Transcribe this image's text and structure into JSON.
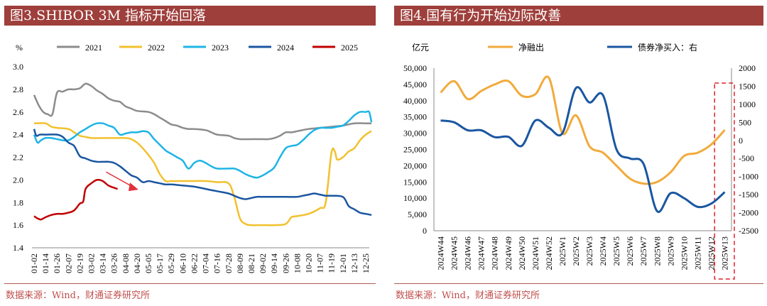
{
  "panel_left": {
    "title": "图3.SHIBOR 3M  指标开始回落",
    "source": "数据来源：Wind，财通证券研究所"
  },
  "panel_right": {
    "title": "图4.国有行为开始边际改善",
    "source": "数据来源：Wind，财通证券研究所"
  },
  "chart_data": [
    {
      "type": "line",
      "ylabel": "%",
      "ylim": [
        1.4,
        3.0
      ],
      "yticks": [
        "1.4",
        "1.6",
        "1.8",
        "2.0",
        "2.2",
        "2.4",
        "2.6",
        "2.8",
        "3.0"
      ],
      "x_ticks": [
        "01-02",
        "01-14",
        "01-26",
        "02-07",
        "02-19",
        "03-02",
        "03-14",
        "03-26",
        "04-08",
        "04-20",
        "05-05",
        "05-17",
        "05-29",
        "06-10",
        "06-22",
        "07-04",
        "07-16",
        "07-28",
        "08-09",
        "08-21",
        "09-02",
        "09-14",
        "09-26",
        "10-08",
        "10-20",
        "11-07",
        "11-19",
        "12-01",
        "12-13",
        "12-25"
      ],
      "legend_position": "top",
      "series": [
        {
          "name": "2021",
          "color": "#8c8c8c",
          "points": [
            [
              0,
              2.75
            ],
            [
              0.4,
              2.66
            ],
            [
              0.8,
              2.6
            ],
            [
              1.2,
              2.58
            ],
            [
              1.6,
              2.58
            ],
            [
              2.0,
              2.77
            ],
            [
              2.5,
              2.78
            ],
            [
              3.0,
              2.8
            ],
            [
              3.5,
              2.8
            ],
            [
              4.0,
              2.81
            ],
            [
              4.5,
              2.85
            ],
            [
              5.0,
              2.83
            ],
            [
              5.5,
              2.79
            ],
            [
              6.0,
              2.76
            ],
            [
              6.5,
              2.72
            ],
            [
              7.0,
              2.7
            ],
            [
              7.5,
              2.69
            ],
            [
              8.0,
              2.65
            ],
            [
              8.5,
              2.63
            ],
            [
              9.0,
              2.61
            ],
            [
              10.0,
              2.6
            ],
            [
              10.5,
              2.58
            ],
            [
              11.0,
              2.55
            ],
            [
              11.5,
              2.52
            ],
            [
              12.0,
              2.49
            ],
            [
              12.5,
              2.48
            ],
            [
              13.0,
              2.46
            ],
            [
              13.5,
              2.45
            ],
            [
              14.0,
              2.45
            ],
            [
              15.0,
              2.44
            ],
            [
              15.5,
              2.42
            ],
            [
              16.0,
              2.4
            ],
            [
              17.0,
              2.39
            ],
            [
              17.5,
              2.37
            ],
            [
              18.0,
              2.36
            ],
            [
              19.0,
              2.36
            ],
            [
              20.0,
              2.36
            ],
            [
              20.5,
              2.36
            ],
            [
              21.0,
              2.37
            ],
            [
              21.5,
              2.39
            ],
            [
              22.0,
              2.42
            ],
            [
              22.5,
              2.42
            ],
            [
              23.0,
              2.43
            ],
            [
              24.0,
              2.45
            ],
            [
              25.0,
              2.46
            ],
            [
              26.0,
              2.47
            ],
            [
              27.0,
              2.48
            ],
            [
              28.0,
              2.5
            ],
            [
              29.0,
              2.5
            ],
            [
              29.5,
              2.5
            ]
          ]
        },
        {
          "name": "2022",
          "color": "#f2c12e",
          "points": [
            [
              0,
              2.5
            ],
            [
              1.0,
              2.5
            ],
            [
              1.5,
              2.47
            ],
            [
              2.0,
              2.46
            ],
            [
              3.0,
              2.45
            ],
            [
              3.5,
              2.42
            ],
            [
              4.0,
              2.39
            ],
            [
              4.5,
              2.38
            ],
            [
              5.0,
              2.37
            ],
            [
              6.0,
              2.37
            ],
            [
              7.0,
              2.37
            ],
            [
              8.0,
              2.37
            ],
            [
              8.5,
              2.36
            ],
            [
              9.0,
              2.33
            ],
            [
              9.5,
              2.28
            ],
            [
              10.0,
              2.22
            ],
            [
              10.5,
              2.15
            ],
            [
              11.0,
              2.05
            ],
            [
              11.5,
              1.99
            ],
            [
              12.0,
              1.99
            ],
            [
              13.0,
              1.99
            ],
            [
              14.0,
              1.99
            ],
            [
              15.0,
              1.99
            ],
            [
              16.0,
              1.98
            ],
            [
              17.0,
              1.97
            ],
            [
              17.5,
              1.85
            ],
            [
              18.0,
              1.66
            ],
            [
              18.5,
              1.61
            ],
            [
              19.0,
              1.6
            ],
            [
              20.0,
              1.6
            ],
            [
              21.0,
              1.6
            ],
            [
              22.0,
              1.61
            ],
            [
              22.5,
              1.67
            ],
            [
              23.0,
              1.68
            ],
            [
              24.0,
              1.7
            ],
            [
              25.0,
              1.75
            ],
            [
              25.5,
              1.8
            ],
            [
              26.0,
              2.24
            ],
            [
              26.3,
              2.25
            ],
            [
              26.5,
              2.18
            ],
            [
              27.0,
              2.2
            ],
            [
              27.5,
              2.25
            ],
            [
              28.0,
              2.28
            ],
            [
              28.5,
              2.35
            ],
            [
              29.0,
              2.4
            ],
            [
              29.5,
              2.43
            ]
          ]
        },
        {
          "name": "2023",
          "color": "#1eb4e6",
          "points": [
            [
              0,
              2.4
            ],
            [
              0.3,
              2.33
            ],
            [
              0.6,
              2.35
            ],
            [
              1.0,
              2.37
            ],
            [
              1.5,
              2.37
            ],
            [
              2.0,
              2.36
            ],
            [
              2.5,
              2.35
            ],
            [
              3.0,
              2.35
            ],
            [
              3.5,
              2.38
            ],
            [
              4.0,
              2.42
            ],
            [
              4.5,
              2.45
            ],
            [
              5.0,
              2.48
            ],
            [
              5.5,
              2.5
            ],
            [
              6.0,
              2.5
            ],
            [
              6.5,
              2.48
            ],
            [
              7.0,
              2.46
            ],
            [
              7.5,
              2.4
            ],
            [
              8.0,
              2.41
            ],
            [
              8.5,
              2.42
            ],
            [
              9.0,
              2.42
            ],
            [
              9.5,
              2.43
            ],
            [
              10.0,
              2.42
            ],
            [
              10.5,
              2.36
            ],
            [
              11.0,
              2.31
            ],
            [
              11.5,
              2.26
            ],
            [
              12.0,
              2.23
            ],
            [
              12.5,
              2.2
            ],
            [
              13.0,
              2.17
            ],
            [
              13.5,
              2.1
            ],
            [
              14.0,
              2.15
            ],
            [
              14.5,
              2.17
            ],
            [
              15.0,
              2.15
            ],
            [
              15.5,
              2.12
            ],
            [
              16.0,
              2.1
            ],
            [
              17.0,
              2.1
            ],
            [
              17.5,
              2.1
            ],
            [
              18.0,
              2.08
            ],
            [
              18.5,
              2.05
            ],
            [
              19.0,
              2.03
            ],
            [
              19.5,
              2.02
            ],
            [
              20.0,
              2.04
            ],
            [
              20.5,
              2.07
            ],
            [
              21.0,
              2.11
            ],
            [
              21.5,
              2.2
            ],
            [
              22.0,
              2.28
            ],
            [
              22.5,
              2.3
            ],
            [
              23.0,
              2.31
            ],
            [
              23.5,
              2.35
            ],
            [
              24.0,
              2.4
            ],
            [
              24.5,
              2.44
            ],
            [
              25.0,
              2.46
            ],
            [
              25.5,
              2.46
            ],
            [
              26.0,
              2.46
            ],
            [
              26.5,
              2.47
            ],
            [
              27.0,
              2.48
            ],
            [
              27.5,
              2.52
            ],
            [
              28.0,
              2.57
            ],
            [
              28.5,
              2.6
            ],
            [
              29.0,
              2.6
            ],
            [
              29.3,
              2.6
            ],
            [
              29.5,
              2.51
            ]
          ]
        },
        {
          "name": "2024",
          "color": "#1a56a0",
          "points": [
            [
              0,
              2.45
            ],
            [
              0.2,
              2.39
            ],
            [
              0.5,
              2.4
            ],
            [
              1.0,
              2.4
            ],
            [
              2.0,
              2.4
            ],
            [
              2.5,
              2.38
            ],
            [
              3.0,
              2.33
            ],
            [
              3.5,
              2.3
            ],
            [
              4.0,
              2.21
            ],
            [
              4.5,
              2.19
            ],
            [
              5.0,
              2.17
            ],
            [
              5.5,
              2.16
            ],
            [
              6.0,
              2.16
            ],
            [
              6.5,
              2.16
            ],
            [
              7.0,
              2.15
            ],
            [
              7.5,
              2.12
            ],
            [
              8.0,
              2.08
            ],
            [
              8.5,
              2.04
            ],
            [
              9.0,
              2.02
            ],
            [
              9.5,
              1.98
            ],
            [
              10.0,
              1.99
            ],
            [
              10.5,
              1.98
            ],
            [
              11.0,
              1.97
            ],
            [
              11.5,
              1.96
            ],
            [
              12.0,
              1.96
            ],
            [
              13.0,
              1.95
            ],
            [
              14.0,
              1.94
            ],
            [
              15.0,
              1.92
            ],
            [
              16.0,
              1.9
            ],
            [
              17.0,
              1.88
            ],
            [
              17.5,
              1.86
            ],
            [
              18.0,
              1.84
            ],
            [
              18.5,
              1.83
            ],
            [
              19.0,
              1.84
            ],
            [
              19.5,
              1.85
            ],
            [
              20.0,
              1.85
            ],
            [
              21.0,
              1.85
            ],
            [
              22.0,
              1.85
            ],
            [
              23.0,
              1.85
            ],
            [
              23.5,
              1.86
            ],
            [
              24.0,
              1.87
            ],
            [
              24.5,
              1.88
            ],
            [
              25.0,
              1.87
            ],
            [
              25.5,
              1.86
            ],
            [
              26.0,
              1.86
            ],
            [
              27.0,
              1.85
            ],
            [
              27.5,
              1.77
            ],
            [
              28.0,
              1.74
            ],
            [
              28.5,
              1.71
            ],
            [
              29.0,
              1.7
            ],
            [
              29.5,
              1.69
            ]
          ]
        },
        {
          "name": "2025",
          "color": "#c00000",
          "points": [
            [
              0,
              1.68
            ],
            [
              0.3,
              1.66
            ],
            [
              0.6,
              1.65
            ],
            [
              1.0,
              1.67
            ],
            [
              1.5,
              1.69
            ],
            [
              2.0,
              1.7
            ],
            [
              2.5,
              1.7
            ],
            [
              3.0,
              1.71
            ],
            [
              3.5,
              1.73
            ],
            [
              4.0,
              1.79
            ],
            [
              4.3,
              1.81
            ],
            [
              4.5,
              1.92
            ],
            [
              5.0,
              1.97
            ],
            [
              5.5,
              2.0
            ],
            [
              6.0,
              1.99
            ],
            [
              6.5,
              1.95
            ],
            [
              7.0,
              1.93
            ],
            [
              7.3,
              1.92
            ]
          ]
        }
      ],
      "annotation": "downward-arrow"
    },
    {
      "type": "line",
      "ylabel_left": "亿元",
      "ylim_left": [
        0,
        50000
      ],
      "ylim_right": [
        -2500,
        2000
      ],
      "yticks_left": [
        "0",
        "5,000",
        "10,000",
        "15,000",
        "20,000",
        "25,000",
        "30,000",
        "35,000",
        "40,000",
        "45,000",
        "50,000"
      ],
      "yticks_right": [
        "-2500",
        "-2000",
        "-1500",
        "-1000",
        "-500",
        "0",
        "500",
        "1000",
        "1500",
        "2000"
      ],
      "x_ticks": [
        "2024W44",
        "2024W45",
        "2024W46",
        "2024W47",
        "2024W48",
        "2024W49",
        "2024W50",
        "2024W51",
        "2024W52",
        "2025W1",
        "2025W2",
        "2025W3",
        "2025W4",
        "2025W5",
        "2025W6",
        "2025W7",
        "2025W8",
        "2025W9",
        "2025W10",
        "2025W11",
        "2025W12",
        "2025W13"
      ],
      "legend_position": "top",
      "series": [
        {
          "name": "净融出",
          "axis": "left",
          "color": "#f2aa3c",
          "values": [
            42500,
            46000,
            40500,
            43000,
            45000,
            46000,
            41500,
            42000,
            47000,
            30000,
            35500,
            26000,
            24000,
            20000,
            16000,
            14500,
            15000,
            18000,
            23000,
            24000,
            26500,
            31000
          ]
        },
        {
          "name": "债券净买入：右",
          "axis": "right",
          "color": "#1a56a0",
          "values": [
            550,
            500,
            280,
            280,
            90,
            100,
            -150,
            550,
            350,
            200,
            1450,
            1050,
            1250,
            -250,
            -500,
            -650,
            -1960,
            -1460,
            -1600,
            -1840,
            -1750,
            -1430
          ]
        }
      ],
      "highlight": "2025W12-2025W13"
    }
  ]
}
